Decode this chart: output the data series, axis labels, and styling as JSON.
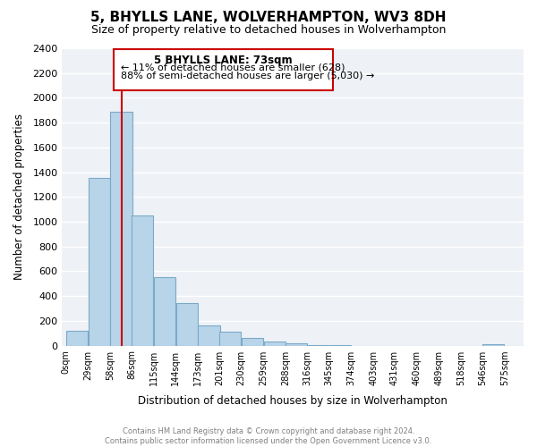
{
  "title": "5, BHYLLS LANE, WOLVERHAMPTON, WV3 8DH",
  "subtitle": "Size of property relative to detached houses in Wolverhampton",
  "xlabel": "Distribution of detached houses by size in Wolverhampton",
  "ylabel": "Number of detached properties",
  "bar_color": "#b8d4e8",
  "bar_edge_color": "#7aaac8",
  "background_color": "#ffffff",
  "plot_bg_color": "#eef2f7",
  "grid_color": "#ffffff",
  "annotation_line_color": "#cc0000",
  "bin_labels": [
    "0sqm",
    "29sqm",
    "58sqm",
    "86sqm",
    "115sqm",
    "144sqm",
    "173sqm",
    "201sqm",
    "230sqm",
    "259sqm",
    "288sqm",
    "316sqm",
    "345sqm",
    "374sqm",
    "403sqm",
    "431sqm",
    "460sqm",
    "489sqm",
    "518sqm",
    "546sqm",
    "575sqm"
  ],
  "bar_heights": [
    120,
    1350,
    1890,
    1050,
    550,
    340,
    160,
    110,
    60,
    30,
    15,
    5,
    2,
    0,
    0,
    0,
    0,
    0,
    0,
    10,
    0
  ],
  "ylim": [
    0,
    2400
  ],
  "yticks": [
    0,
    200,
    400,
    600,
    800,
    1000,
    1200,
    1400,
    1600,
    1800,
    2000,
    2200,
    2400
  ],
  "property_line_x": 73,
  "bin_edges": [
    0,
    29,
    58,
    86,
    115,
    144,
    173,
    201,
    230,
    259,
    288,
    316,
    345,
    374,
    403,
    431,
    460,
    489,
    518,
    546,
    575
  ],
  "bin_width": 29,
  "annotation_text_line1": "5 BHYLLS LANE: 73sqm",
  "annotation_text_line2": "← 11% of detached houses are smaller (628)",
  "annotation_text_line3": "88% of semi-detached houses are larger (5,030) →",
  "footer_line1": "Contains HM Land Registry data © Crown copyright and database right 2024.",
  "footer_line2": "Contains public sector information licensed under the Open Government Licence v3.0."
}
